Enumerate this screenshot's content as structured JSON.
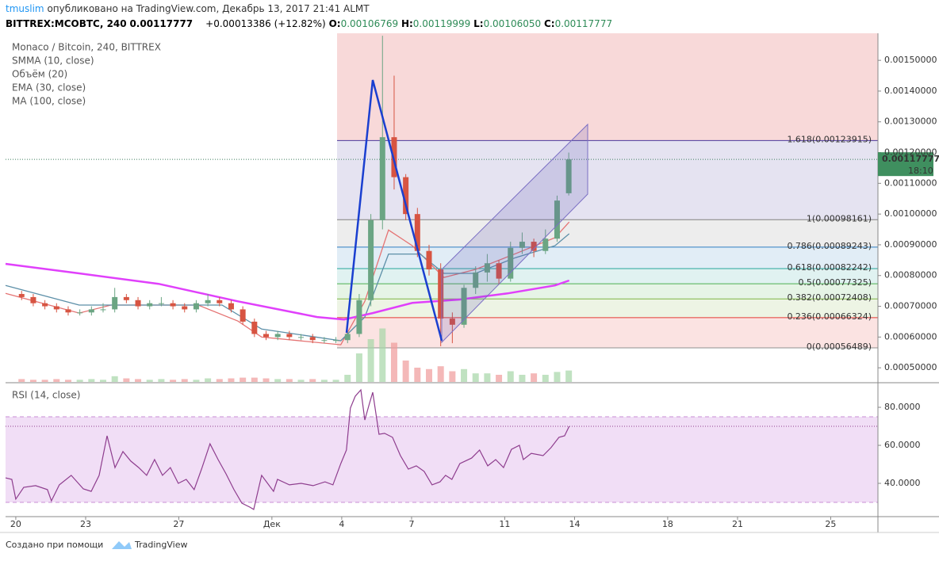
{
  "header": {
    "user": "tmuslim",
    "published": "опубликовано на TradingView.com, Декабрь 13, 2017 21:41 ALMT",
    "symbol": "BITTREX:MCOBTC, 240",
    "last": "0.00117777",
    "change": "+0.00013386 (+12.82%)",
    "ohlc": [
      {
        "label": "O:",
        "value": "0.00106769"
      },
      {
        "label": "H:",
        "value": "0.00119999"
      },
      {
        "label": "L:",
        "value": "0.00106050"
      },
      {
        "label": "C:",
        "value": "0.00117777"
      }
    ]
  },
  "chart_data": [
    {
      "type": "candlestick",
      "title": "Monaco / Bitcoin, 240, BITTREX",
      "x": [
        0.25,
        0.75,
        1.25,
        1.75,
        2.25,
        2.75,
        3.25,
        3.75,
        4.25,
        4.75,
        5.25,
        5.75,
        6.25,
        6.75,
        7.25,
        7.75,
        8.25,
        8.75,
        9.25,
        9.75,
        10.25,
        10.75,
        11.25,
        11.75,
        12.25,
        12.75,
        13.25,
        13.75,
        14.25,
        14.75,
        15.25,
        15.75,
        16.25,
        16.75,
        17.25,
        17.75,
        18.25,
        18.75,
        19.25,
        19.75,
        20.25,
        20.75,
        21.25,
        21.75,
        22.25,
        22.75,
        23.25,
        23.75
      ],
      "open": [
        0.00074,
        0.00073,
        0.00071,
        0.0007,
        0.00069,
        0.00068,
        0.00068,
        0.00069,
        0.00069,
        0.00073,
        0.00072,
        0.0007,
        0.00071,
        0.00071,
        0.0007,
        0.00069,
        0.00071,
        0.00072,
        0.00071,
        0.00069,
        0.00065,
        0.00061,
        0.0006,
        0.00061,
        0.0006,
        0.0006,
        0.00059,
        0.00059,
        0.00059,
        0.00061,
        0.00072,
        0.00098,
        0.00125,
        0.00112,
        0.001,
        0.00088,
        0.00082,
        0.00066,
        0.00064,
        0.00076,
        0.00081,
        0.00084,
        0.00079,
        0.00089,
        0.00091,
        0.00088,
        0.00092,
        0.00106769
      ],
      "high": [
        0.00075,
        0.00074,
        0.00072,
        0.00071,
        0.0007,
        0.00069,
        0.0007,
        0.00071,
        0.00076,
        0.00074,
        0.00073,
        0.00072,
        0.00073,
        0.00072,
        0.00071,
        0.00072,
        0.00074,
        0.00073,
        0.00072,
        0.0007,
        0.00066,
        0.00062,
        0.00062,
        0.00062,
        0.00061,
        0.00061,
        0.0006,
        0.0006,
        0.00062,
        0.00074,
        0.001,
        0.00158,
        0.00145,
        0.00113,
        0.00102,
        0.0009,
        0.00084,
        0.00068,
        0.00077,
        0.00083,
        0.00087,
        0.00085,
        0.00091,
        0.00094,
        0.00092,
        0.00095,
        0.00106,
        0.00119999
      ],
      "low": [
        0.00072,
        0.0007,
        0.00069,
        0.00068,
        0.00067,
        0.00067,
        0.00067,
        0.00068,
        0.00068,
        0.00071,
        0.00069,
        0.00069,
        0.0007,
        0.00069,
        0.00068,
        0.00068,
        0.0007,
        0.0007,
        0.00068,
        0.00064,
        0.0006,
        0.00059,
        0.00059,
        0.00059,
        0.00059,
        0.00058,
        0.00058,
        0.00058,
        0.00058,
        0.0006,
        0.0007,
        0.00095,
        0.00108,
        0.00098,
        0.00086,
        0.0008,
        0.00057,
        0.00058,
        0.00063,
        0.00074,
        0.00078,
        0.00077,
        0.00078,
        0.00087,
        0.00086,
        0.00087,
        0.00091,
        0.0010605
      ],
      "close": [
        0.00073,
        0.00071,
        0.0007,
        0.00069,
        0.00068,
        0.00068,
        0.00069,
        0.00069,
        0.00073,
        0.00072,
        0.0007,
        0.00071,
        0.00071,
        0.0007,
        0.00069,
        0.00071,
        0.00072,
        0.00071,
        0.00069,
        0.00065,
        0.00061,
        0.0006,
        0.00061,
        0.0006,
        0.0006,
        0.00059,
        0.00059,
        0.00059,
        0.00061,
        0.00072,
        0.00098,
        0.00125,
        0.00112,
        0.001,
        0.00088,
        0.00082,
        0.00066,
        0.00064,
        0.00076,
        0.00081,
        0.00084,
        0.00079,
        0.00089,
        0.00091,
        0.00088,
        0.00092,
        0.00104391,
        0.00117777
      ],
      "up_color": "#6ba583",
      "down_color": "#d75442",
      "volume_name": "Объём (20)",
      "volume": [
        4,
        3,
        3,
        4,
        3,
        3,
        4,
        3,
        8,
        5,
        4,
        3,
        4,
        3,
        4,
        3,
        5,
        4,
        5,
        6,
        6,
        5,
        4,
        4,
        3,
        4,
        3,
        3,
        10,
        40,
        60,
        75,
        55,
        30,
        20,
        18,
        22,
        15,
        18,
        12,
        12,
        10,
        15,
        10,
        12,
        10,
        14,
        16
      ],
      "volume_lim": [
        0,
        100
      ],
      "series": [
        {
          "name": "SMMA (10, close)",
          "color": "#e57373",
          "x": [
            -0.44,
            2.72,
            4.09,
            7.83,
            9.54,
            10.56,
            13.96,
            14.99,
            16.01,
            17.03,
            18.39,
            19.75,
            21.46,
            23.16,
            23.77
          ],
          "values": [
            0.000742,
            0.000678,
            0.000704,
            0.000704,
            0.000652,
            0.0006,
            0.000575,
            0.000716,
            0.000948,
            0.000897,
            0.000794,
            0.00082,
            0.000871,
            0.000923,
            0.000974
          ]
        },
        {
          "name": "EMA (30, close)",
          "color": "#5c8fa8",
          "x": [
            -0.44,
            2.72,
            6.13,
            8.86,
            10.56,
            13.96,
            14.99,
            16.01,
            17.37,
            18.39,
            19.75,
            21.46,
            23.16,
            23.77
          ],
          "values": [
            0.000768,
            0.000704,
            0.000704,
            0.000704,
            0.000626,
            0.000588,
            0.000665,
            0.00087,
            0.00087,
            0.000807,
            0.000807,
            0.000858,
            0.000897,
            0.000936
          ]
        },
        {
          "name": "MA (100, close)",
          "color": "#e040fb",
          "x": [
            -0.44,
            2.72,
            6.13,
            9.54,
            12.94,
            14.1,
            15.33,
            17.03,
            19.07,
            21.12,
            23.16,
            23.77
          ],
          "values": [
            0.000838,
            0.000807,
            0.000773,
            0.000716,
            0.000665,
            0.000657,
            0.000678,
            0.000711,
            0.000722,
            0.000742,
            0.000768,
            0.000784
          ]
        }
      ],
      "fib_levels": [
        {
          "label": "1.618(0.00123915)",
          "value": 0.00123915,
          "color": "#4a3a9c"
        },
        {
          "label": "1(0.00098161)",
          "value": 0.00098161,
          "color": "#808080"
        },
        {
          "label": "0.786(0.00089243)",
          "value": 0.00089243,
          "color": "#2e7ec1"
        },
        {
          "label": "0.618(0.00082242)",
          "value": 0.00082242,
          "color": "#26a69a"
        },
        {
          "label": "0.5(0.00077325)",
          "value": 0.00077325,
          "color": "#4caf50"
        },
        {
          "label": "0.382(0.00072408)",
          "value": 0.00072408,
          "color": "#7cb342"
        },
        {
          "label": "0.236(0.00066324)",
          "value": 0.00066324,
          "color": "#e53935"
        },
        {
          "label": "0(0.00056489)",
          "value": 0.00056489,
          "color": "#909090"
        }
      ],
      "countdown": "18:10",
      "xlim": [
        -0.44,
        37.03
      ],
      "xticks": [
        {
          "value": 0,
          "label": "20"
        },
        {
          "value": 3,
          "label": "23"
        },
        {
          "value": 7,
          "label": "27"
        },
        {
          "value": 11,
          "label": "Дек"
        },
        {
          "value": 14,
          "label": "4"
        },
        {
          "value": 17,
          "label": "7"
        },
        {
          "value": 21,
          "label": "11"
        },
        {
          "value": 24,
          "label": "14"
        },
        {
          "value": 28,
          "label": "18"
        },
        {
          "value": 31,
          "label": "21"
        },
        {
          "value": 35,
          "label": "25"
        }
      ],
      "ylim": [
        0.000454,
        0.001588
      ],
      "yticks": [
        {
          "value": 0.0005,
          "label": "0.00050000"
        },
        {
          "value": 0.0006,
          "label": "0.00060000"
        },
        {
          "value": 0.0007,
          "label": "0.00070000"
        },
        {
          "value": 0.0008,
          "label": "0.00080000"
        },
        {
          "value": 0.0009,
          "label": "0.00090000"
        },
        {
          "value": 0.001,
          "label": "0.00100000"
        },
        {
          "value": 0.0011,
          "label": "0.00110000"
        },
        {
          "value": 0.0012,
          "label": "0.00120000"
        },
        {
          "value": 0.0013,
          "label": "0.00130000"
        },
        {
          "value": 0.0014,
          "label": "0.00140000"
        },
        {
          "value": 0.0015,
          "label": "0.00150000"
        }
      ],
      "grid": false
    },
    {
      "type": "line",
      "title": "RSI (14, close)",
      "color": "#8e3d8e",
      "x": [
        -0.44,
        -0.17,
        0,
        0.34,
        0.85,
        1.36,
        1.53,
        1.87,
        2.38,
        2.9,
        3.24,
        3.58,
        3.92,
        4.26,
        4.6,
        4.94,
        5.28,
        5.62,
        5.96,
        6.3,
        6.64,
        6.98,
        7.32,
        7.66,
        8,
        8.34,
        8.69,
        9.03,
        9.37,
        9.71,
        10.05,
        10.22,
        10.56,
        11.07,
        11.24,
        11.75,
        12.26,
        12.77,
        13.28,
        13.62,
        13.96,
        14.2,
        14.37,
        14.58,
        14.82,
        14.99,
        15.16,
        15.33,
        15.6,
        15.84,
        16.18,
        16.52,
        16.86,
        17.2,
        17.54,
        17.88,
        18.22,
        18.46,
        18.73,
        19.07,
        19.58,
        19.92,
        20.27,
        20.61,
        20.95,
        21.29,
        21.63,
        21.8,
        22.14,
        22.65,
        22.99,
        23.33,
        23.57,
        23.77
      ],
      "values": [
        42.9,
        42.1,
        31.7,
        37.9,
        38.8,
        36.7,
        30.8,
        39.2,
        44.2,
        37.1,
        35.8,
        44.2,
        65,
        48.3,
        56.7,
        51.7,
        48.3,
        44.2,
        52.5,
        44.2,
        48.3,
        40,
        42.1,
        36.7,
        48.3,
        60.8,
        52.5,
        45,
        36.7,
        29.6,
        27.5,
        26.3,
        44.2,
        35.8,
        42.1,
        39.2,
        40,
        38.8,
        40.8,
        39.2,
        50.4,
        57.5,
        79.6,
        85.8,
        89.2,
        73.3,
        80.8,
        87.9,
        65.8,
        66.3,
        64.2,
        54.6,
        47.5,
        49.2,
        46.3,
        39.2,
        40.8,
        44.2,
        42.1,
        50.4,
        53.3,
        57.5,
        49.2,
        52.5,
        48.3,
        57.9,
        60,
        52.5,
        55.8,
        54.6,
        58.8,
        64.2,
        65,
        70
      ],
      "bands": [
        30,
        75
      ],
      "ylim": [
        22.5,
        92.1
      ],
      "yticks": [
        {
          "value": 40,
          "label": "40.0000"
        },
        {
          "value": 60,
          "label": "60.0000"
        },
        {
          "value": 80,
          "label": "80.0000"
        }
      ]
    }
  ],
  "footer": {
    "text": "Создано при помощи",
    "brand": "TradingView"
  }
}
